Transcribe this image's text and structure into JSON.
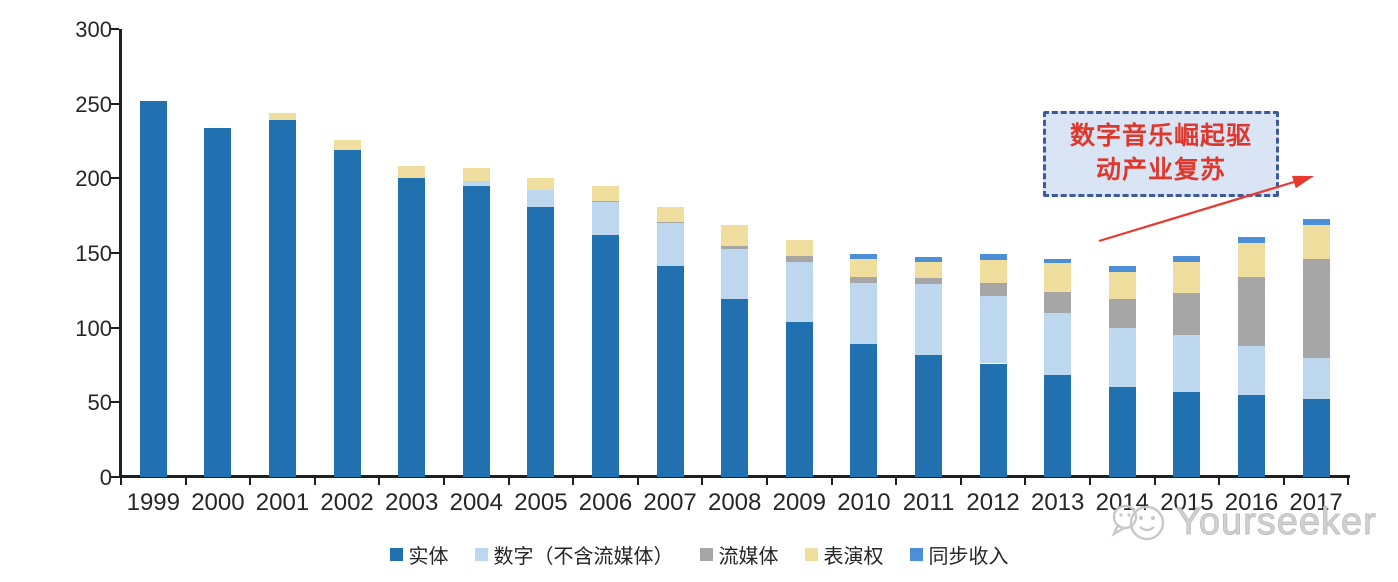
{
  "annotation": {
    "line1": "数字音乐崛起驱",
    "line2": "动产业复苏",
    "box_fill": "#d9e5f4",
    "box_border": "#3d5a99",
    "text_color": "#e0372c",
    "arrow_color": "#e8392e"
  },
  "watermark": {
    "text": "Yourseeker",
    "color": "#c9c9c9"
  },
  "chart_data": {
    "type": "bar",
    "stacked": true,
    "title": "",
    "xlabel": "",
    "ylabel": "",
    "grid": false,
    "legend_position": "bottom",
    "ylim": [
      0,
      300
    ],
    "yticks": [
      0,
      50,
      100,
      150,
      200,
      250,
      300
    ],
    "categories": [
      "1999",
      "2000",
      "2001",
      "2002",
      "2003",
      "2004",
      "2005",
      "2006",
      "2007",
      "2008",
      "2009",
      "2010",
      "2011",
      "2012",
      "2013",
      "2014",
      "2015",
      "2016",
      "2017"
    ],
    "series": [
      {
        "name": "实体",
        "color": "#2171b0",
        "values": [
          252,
          234,
          239,
          219,
          200,
          195,
          181,
          162,
          141,
          119,
          104,
          89,
          82,
          76,
          68,
          60,
          57,
          55,
          52
        ]
      },
      {
        "name": "数字（不含流媒体）",
        "color": "#bdd7ee",
        "values": [
          0,
          0,
          0,
          0,
          0,
          3,
          11,
          22,
          29,
          34,
          40,
          41,
          47,
          45,
          42,
          40,
          38,
          33,
          28
        ]
      },
      {
        "name": "流媒体",
        "color": "#a6a6a6",
        "values": [
          0,
          0,
          0,
          0,
          0,
          0,
          0,
          1,
          1,
          2,
          4,
          4,
          4,
          9,
          14,
          19,
          28,
          46,
          66
        ]
      },
      {
        "name": "表演权",
        "color": "#efde9e",
        "values": [
          0,
          0,
          5,
          7,
          8,
          9,
          8,
          10,
          10,
          14,
          11,
          12,
          11,
          15,
          19,
          18,
          21,
          23,
          23
        ]
      },
      {
        "name": "同步收入",
        "color": "#4d8fd6",
        "values": [
          0,
          0,
          0,
          0,
          0,
          0,
          0,
          0,
          0,
          0,
          0,
          3,
          3,
          4,
          3,
          4,
          4,
          4,
          4
        ]
      }
    ]
  }
}
